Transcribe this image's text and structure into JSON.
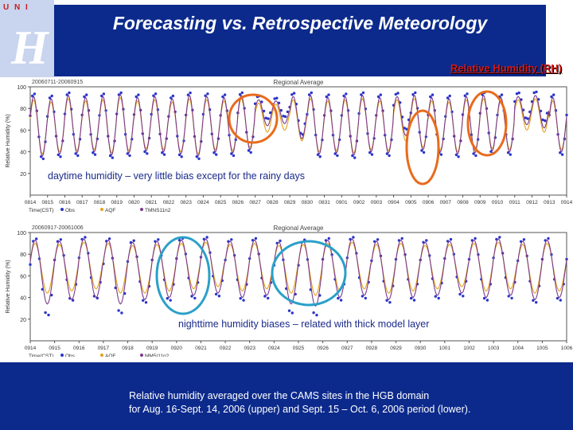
{
  "slide": {
    "title": "Forecasting vs. Retrospective Meteorology",
    "logo_text": "U N I",
    "section_label": "Relative Humidity (RH)",
    "caption_line1": "Relative humidity averaged over the CAMS sites in the HGB domain",
    "caption_line2": "for  Aug. 16-Sept. 14, 2006  (upper) and Sept. 15 – Oct. 6, 2006 period (lower)."
  },
  "colors": {
    "obs": "#2b35c9",
    "aqf": "#e3a21a",
    "mm5": "#7a3a8c",
    "orange_circle": "#e86b1c",
    "teal_circle": "#2aa0c8",
    "band": "#0c2a8c"
  },
  "chart_data": [
    {
      "type": "line",
      "panel_title": "Regional Average",
      "date_range": "20060711-20060915",
      "ylabel": "Relative Humidity (%)",
      "xlabel": "Time(CST)",
      "ylim": [
        0,
        100
      ],
      "yticks": [
        20,
        40,
        60,
        80,
        100
      ],
      "x_tick_labels": [
        "0814",
        "0815",
        "0816",
        "0817",
        "0818",
        "0819",
        "0820",
        "0821",
        "0822",
        "0823",
        "0824",
        "0825",
        "0826",
        "0827",
        "0828",
        "0829",
        "0830",
        "0831",
        "0901",
        "0902",
        "0903",
        "0904",
        "0905",
        "0906",
        "0907",
        "0908",
        "0909",
        "0910",
        "0911",
        "0912",
        "0913",
        "0914"
      ],
      "legend": [
        "Obs",
        "AQF",
        "TMNS11n2"
      ],
      "days": 31,
      "series": [
        {
          "name": "Obs",
          "style": "dots",
          "daily_max": [
            95,
            93,
            96,
            94,
            95,
            96,
            94,
            95,
            93,
            96,
            95,
            94,
            96,
            92,
            90,
            95,
            96,
            94,
            95,
            96,
            94,
            95,
            96,
            94,
            93,
            95,
            96,
            94,
            95,
            96,
            94
          ],
          "daily_min": [
            32,
            34,
            35,
            36,
            33,
            35,
            37,
            36,
            34,
            32,
            36,
            35,
            38,
            70,
            72,
            55,
            34,
            35,
            33,
            36,
            35,
            60,
            38,
            36,
            34,
            35,
            37,
            36,
            70,
            68,
            36
          ]
        },
        {
          "name": "AQF",
          "style": "line",
          "daily_max": [
            88,
            86,
            89,
            87,
            88,
            90,
            87,
            88,
            86,
            89,
            88,
            87,
            89,
            85,
            84,
            88,
            89,
            87,
            88,
            89,
            87,
            88,
            89,
            87,
            86,
            88,
            89,
            87,
            88,
            89,
            87
          ],
          "daily_min": [
            38,
            40,
            41,
            42,
            39,
            41,
            43,
            42,
            40,
            38,
            42,
            41,
            44,
            58,
            60,
            50,
            40,
            41,
            39,
            42,
            41,
            50,
            44,
            42,
            40,
            41,
            43,
            42,
            60,
            58,
            42
          ]
        },
        {
          "name": "TMNS11n2",
          "style": "line",
          "daily_max": [
            91,
            89,
            92,
            90,
            91,
            93,
            90,
            91,
            89,
            92,
            91,
            90,
            92,
            88,
            87,
            91,
            92,
            90,
            91,
            92,
            90,
            91,
            92,
            90,
            89,
            91,
            92,
            90,
            91,
            92,
            90
          ],
          "daily_min": [
            36,
            38,
            39,
            40,
            37,
            39,
            41,
            40,
            38,
            36,
            40,
            39,
            42,
            64,
            66,
            52,
            38,
            39,
            37,
            40,
            39,
            55,
            42,
            40,
            38,
            39,
            41,
            40,
            65,
            62,
            40
          ]
        }
      ],
      "annotation": "daytime humidity – very little bias except for the rainy days"
    },
    {
      "type": "line",
      "panel_title": "Regional Average",
      "date_range": "20060917-20061006",
      "ylabel": "Relative Humidity (%)",
      "xlabel": "Time(CST)",
      "ylim": [
        0,
        100
      ],
      "yticks": [
        20,
        40,
        60,
        80,
        100
      ],
      "x_tick_labels": [
        "0914",
        "0915",
        "0916",
        "0917",
        "0918",
        "0919",
        "0920",
        "0921",
        "0922",
        "0923",
        "0924",
        "0925",
        "0926",
        "0927",
        "0928",
        "0929",
        "0930",
        "1001",
        "1002",
        "1003",
        "1004",
        "1005",
        "1006"
      ],
      "legend": [
        "Obs",
        "AQF",
        "MM5/11n2"
      ],
      "days": 22,
      "series": [
        {
          "name": "Obs",
          "style": "dots",
          "daily_max": [
            96,
            95,
            97,
            96,
            94,
            95,
            96,
            97,
            95,
            96,
            94,
            95,
            96,
            97,
            95,
            96,
            94,
            95,
            96,
            97,
            95,
            96
          ],
          "daily_min": [
            22,
            36,
            38,
            24,
            34,
            36,
            38,
            40,
            36,
            38,
            24,
            22,
            36,
            38,
            34,
            36,
            38,
            40,
            36,
            38,
            34,
            36
          ]
        },
        {
          "name": "AQF",
          "style": "line",
          "daily_max": [
            90,
            89,
            91,
            90,
            88,
            89,
            90,
            91,
            89,
            90,
            88,
            89,
            90,
            91,
            89,
            90,
            88,
            89,
            90,
            91,
            89,
            90
          ],
          "daily_min": [
            44,
            46,
            48,
            44,
            44,
            46,
            48,
            50,
            46,
            48,
            44,
            42,
            46,
            48,
            44,
            46,
            48,
            50,
            46,
            48,
            44,
            46
          ]
        },
        {
          "name": "MM5/11n2",
          "style": "line",
          "daily_max": [
            93,
            92,
            94,
            93,
            91,
            92,
            93,
            94,
            92,
            93,
            91,
            92,
            93,
            94,
            92,
            93,
            91,
            92,
            93,
            94,
            92,
            93
          ],
          "daily_min": [
            34,
            38,
            40,
            34,
            38,
            40,
            42,
            44,
            40,
            42,
            34,
            32,
            40,
            42,
            38,
            40,
            42,
            44,
            40,
            42,
            38,
            40
          ]
        }
      ],
      "annotation": "nighttime humidity biases – related with thick model layer"
    }
  ]
}
